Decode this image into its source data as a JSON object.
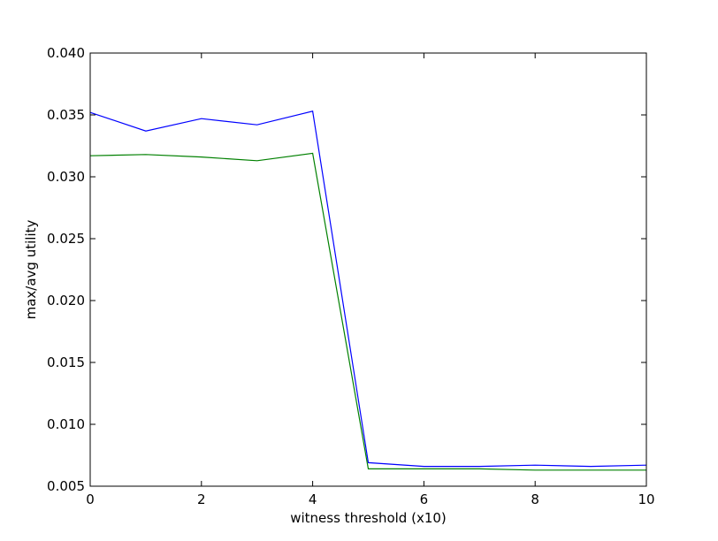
{
  "chart_data": {
    "type": "line",
    "title": "",
    "xlabel": "witness threshold (x10)",
    "ylabel": "max/avg utility",
    "xlim": [
      0,
      10
    ],
    "ylim": [
      0.005,
      0.04
    ],
    "xticks": [
      "0",
      "2",
      "4",
      "6",
      "8",
      "10"
    ],
    "yticks": [
      "0.005",
      "0.010",
      "0.015",
      "0.020",
      "0.025",
      "0.030",
      "0.035",
      "0.040"
    ],
    "grid": false,
    "legend": "none",
    "x": [
      0,
      1,
      2,
      3,
      4,
      5,
      6,
      7,
      8,
      9,
      10
    ],
    "series": [
      {
        "color": "#0000ff",
        "values": [
          0.0352,
          0.0337,
          0.0347,
          0.0342,
          0.0353,
          0.0069,
          0.0066,
          0.0066,
          0.0067,
          0.0066,
          0.0067
        ]
      },
      {
        "color": "#008000",
        "values": [
          0.0317,
          0.0318,
          0.0316,
          0.0313,
          0.0319,
          0.0064,
          0.0064,
          0.0064,
          0.0063,
          0.0063,
          0.0063
        ]
      }
    ]
  }
}
